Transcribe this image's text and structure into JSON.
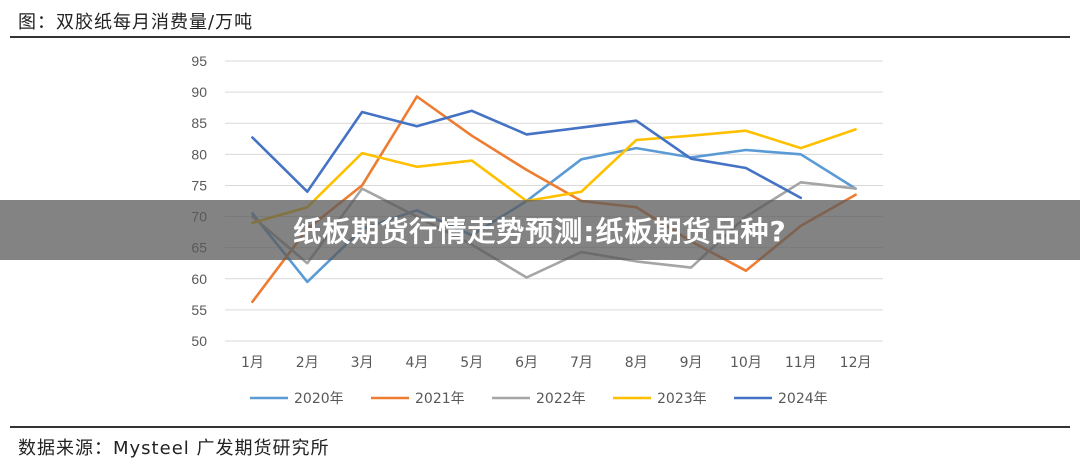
{
  "header": {
    "figure_title": "图：双胶纸每月消费量/万吨"
  },
  "footer": {
    "source": "数据来源：Mysteel 广发期货研究所"
  },
  "overlay": {
    "headline": "纸板期货行情走势预测:纸板期货品种?"
  },
  "chart_data": {
    "type": "line",
    "title": "图：双胶纸每月消费量/万吨",
    "xlabel": "",
    "ylabel": "",
    "categories": [
      "1月",
      "2月",
      "3月",
      "4月",
      "5月",
      "6月",
      "7月",
      "8月",
      "9月",
      "10月",
      "11月",
      "12月"
    ],
    "ylim": [
      50,
      95
    ],
    "yticks": [
      50,
      55,
      60,
      65,
      70,
      75,
      80,
      85,
      90,
      95
    ],
    "grid": true,
    "legend_position": "bottom",
    "series": [
      {
        "name": "2020年",
        "color": "#5b9bd5",
        "values": [
          70.5,
          59.5,
          68.0,
          71.0,
          67.0,
          72.5,
          79.2,
          81.0,
          79.5,
          80.7,
          80.0,
          74.5
        ]
      },
      {
        "name": "2021年",
        "color": "#ed7d31",
        "values": [
          56.3,
          68.0,
          75.0,
          89.3,
          83.0,
          77.5,
          72.5,
          71.5,
          66.0,
          61.3,
          68.5,
          73.5
        ]
      },
      {
        "name": "2022年",
        "color": "#a5a5a5",
        "values": [
          70.0,
          62.5,
          74.5,
          70.0,
          65.5,
          60.2,
          64.3,
          62.8,
          61.8,
          70.0,
          75.5,
          74.5
        ]
      },
      {
        "name": "2023年",
        "color": "#ffc000",
        "values": [
          69.0,
          71.5,
          80.2,
          78.0,
          79.0,
          72.5,
          74.0,
          82.3,
          83.0,
          83.8,
          81.0,
          84.0
        ]
      },
      {
        "name": "2024年",
        "color": "#4472c4",
        "values": [
          82.7,
          74.0,
          86.8,
          84.5,
          87.0,
          83.2,
          84.3,
          85.4,
          79.3,
          77.8,
          73.0,
          null
        ]
      }
    ]
  }
}
